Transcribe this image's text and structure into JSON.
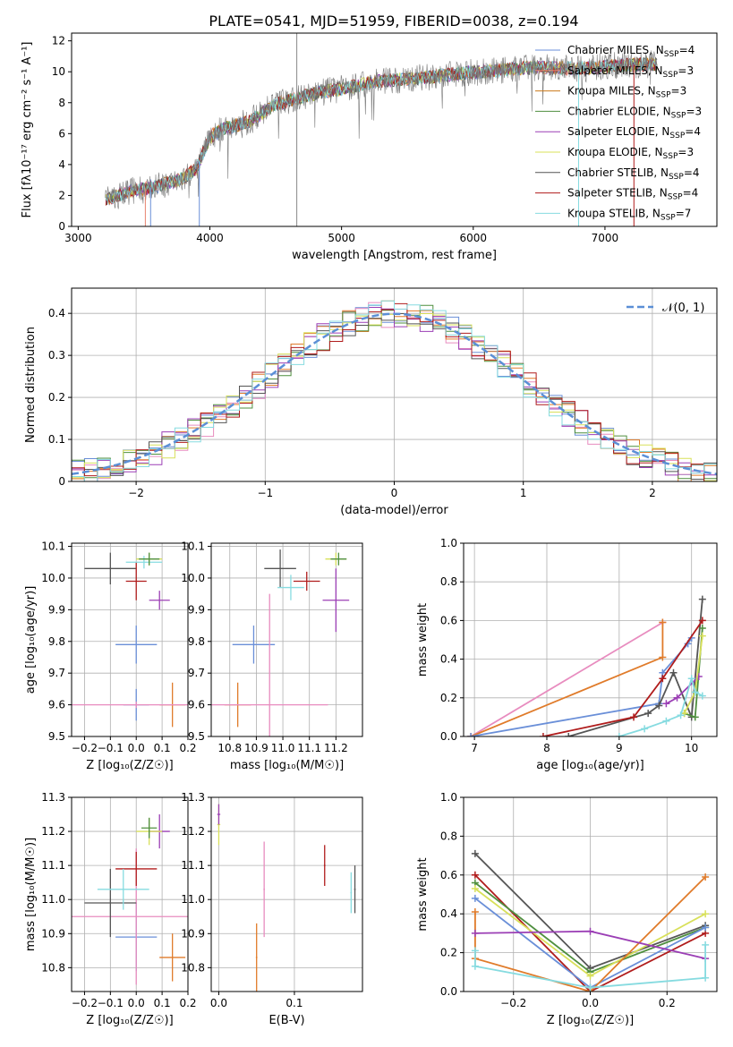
{
  "palette": [
    "#6a8fd8",
    "#e07b2a",
    "#cc7a1a",
    "#4f8f3f",
    "#9b3fb5",
    "#d8e05a",
    "#555555",
    "#b01c1c",
    "#86dbe0",
    "#e88cbf"
  ],
  "chart_data": [
    {
      "id": "spectrum",
      "type": "line",
      "title": "PLATE=0541, MJD=51959, FIBERID=0038, z=0.194",
      "xlabel": "wavelength [Angstrom, rest frame]",
      "ylabel": "Flux [fλ10⁻¹⁷ erg cm⁻² s⁻¹ A⁻¹]",
      "xlim": [
        2950,
        7850
      ],
      "ylim": [
        0,
        12.5
      ],
      "xticks": [
        3000,
        4000,
        5000,
        6000,
        7000
      ],
      "yticks": [
        0,
        2,
        4,
        6,
        8,
        10,
        12
      ],
      "legend_position": "right",
      "legend": [
        {
          "label": "Chabrier MILES, N_SSP=4",
          "color": "#6a8fd8"
        },
        {
          "label": "Salpeter MILES, N_SSP=3",
          "color": "#e8846f"
        },
        {
          "label": "Kroupa MILES, N_SSP=3",
          "color": "#cc7a1a"
        },
        {
          "label": "Chabrier ELODIE, N_SSP=3",
          "color": "#4f8f3f"
        },
        {
          "label": "Salpeter ELODIE, N_SSP=4",
          "color": "#9b3fb5"
        },
        {
          "label": "Kroupa ELODIE, N_SSP=3",
          "color": "#d8e05a"
        },
        {
          "label": "Chabrier STELIB, N_SSP=4",
          "color": "#555555"
        },
        {
          "label": "Salpeter STELIB, N_SSP=4",
          "color": "#b01c1c"
        },
        {
          "label": "Kroupa STELIB, N_SSP=7",
          "color": "#86dbe0"
        }
      ],
      "continuum": {
        "x": [
          3200,
          3400,
          3600,
          3800,
          3900,
          4000,
          4100,
          4300,
          4500,
          4800,
          5000,
          5300,
          5600,
          5900,
          6200,
          6500,
          6800,
          7100,
          7400
        ],
        "y": [
          1.7,
          2.3,
          2.6,
          3.1,
          3.8,
          5.8,
          6.3,
          6.8,
          7.9,
          8.6,
          8.9,
          9.4,
          9.6,
          9.9,
          10.1,
          10.3,
          10.2,
          10.4,
          10.5
        ]
      }
    },
    {
      "id": "residuals",
      "type": "histogram",
      "xlabel": "(data-model)/error",
      "ylabel": "Normed distribution",
      "xlim": [
        -2.5,
        2.5
      ],
      "ylim": [
        0,
        0.46
      ],
      "xticks": [
        -2,
        -1,
        0,
        1,
        2
      ],
      "yticks": [
        0.0,
        0.1,
        0.2,
        0.3,
        0.4
      ],
      "grid": true,
      "legend_position": "top-right",
      "legend": [
        {
          "label": "𝒩(0, 1)",
          "color": "#5b8fd6",
          "dash": true
        }
      ],
      "bin_width": 0.1,
      "n_histograms": 9
    },
    {
      "id": "age-vs-z",
      "type": "errorbar",
      "xlabel": "Z [log₁₀(Z/Z☉)]",
      "ylabel": "age  [log₁₀(age/yr)]",
      "xlim": [
        -0.25,
        0.2
      ],
      "ylim": [
        9.5,
        10.11
      ],
      "xticks": [
        "-0.2",
        "-0.1",
        "0.0",
        "0.1",
        "0.2"
      ],
      "xtick_values": [
        -0.2,
        -0.1,
        0,
        0.1,
        0.2
      ],
      "yticks": [
        "9.5",
        "9.6",
        "9.7",
        "9.8",
        "9.9",
        "10.0",
        "10.1"
      ],
      "ytick_values": [
        9.5,
        9.6,
        9.7,
        9.8,
        9.9,
        10.0,
        10.1
      ],
      "grid": true,
      "points": [
        {
          "x": 0.0,
          "y": 9.79,
          "xerr": 0.08,
          "yerr": 0.06,
          "c": 0
        },
        {
          "x": 0.0,
          "y": 9.6,
          "xerr": 0.05,
          "yerr": 0.05,
          "c": 0
        },
        {
          "x": 0.14,
          "y": 9.6,
          "xerr": 0.05,
          "yerr": 0.07,
          "c": 1
        },
        {
          "x": 0.0,
          "y": 9.6,
          "xerr": 0.25,
          "yerr": 0.01,
          "c": 9
        },
        {
          "x": 0.09,
          "y": 9.93,
          "xerr": 0.04,
          "yerr": 0.03,
          "c": 4
        },
        {
          "x": 0.05,
          "y": 10.06,
          "xerr": 0.05,
          "yerr": 0.02,
          "c": 5
        },
        {
          "x": -0.1,
          "y": 10.03,
          "xerr": 0.1,
          "yerr": 0.05,
          "c": 6
        },
        {
          "x": 0.0,
          "y": 9.99,
          "xerr": 0.04,
          "yerr": 0.06,
          "c": 7
        },
        {
          "x": 0.03,
          "y": 10.05,
          "xerr": 0.07,
          "yerr": 0.02,
          "c": 8
        },
        {
          "x": 0.05,
          "y": 10.06,
          "xerr": 0.04,
          "yerr": 0.02,
          "c": 3
        }
      ]
    },
    {
      "id": "age-vs-mass",
      "type": "errorbar",
      "xlabel": "mass [log₁₀(M/M☉)]",
      "ylabel": "",
      "xlim": [
        10.73,
        11.3
      ],
      "ylim": [
        9.5,
        10.11
      ],
      "xticks": [
        "10.8",
        "10.9",
        "11.0",
        "11.1",
        "11.2"
      ],
      "xtick_values": [
        10.8,
        10.9,
        11.0,
        11.1,
        11.2
      ],
      "yticks": [
        "9.5",
        "9.6",
        "9.7",
        "9.8",
        "9.9",
        "10.0",
        "10.1"
      ],
      "ytick_values": [
        9.5,
        9.6,
        9.7,
        9.8,
        9.9,
        10.0,
        10.1
      ],
      "grid": true,
      "points": [
        {
          "x": 10.89,
          "y": 9.79,
          "xerr": 0.08,
          "yerr": 0.06,
          "c": 0
        },
        {
          "x": 10.83,
          "y": 9.6,
          "xerr": 0.05,
          "yerr": 0.07,
          "c": 1
        },
        {
          "x": 10.95,
          "y": 9.6,
          "xerr": 0.22,
          "yerr": 0.35,
          "c": 9
        },
        {
          "x": 11.2,
          "y": 9.93,
          "xerr": 0.05,
          "yerr": 0.1,
          "c": 4
        },
        {
          "x": 11.2,
          "y": 10.06,
          "xerr": 0.04,
          "yerr": 0.02,
          "c": 5
        },
        {
          "x": 10.99,
          "y": 10.03,
          "xerr": 0.06,
          "yerr": 0.06,
          "c": 6
        },
        {
          "x": 11.09,
          "y": 9.99,
          "xerr": 0.05,
          "yerr": 0.03,
          "c": 7
        },
        {
          "x": 11.03,
          "y": 9.97,
          "xerr": 0.05,
          "yerr": 0.04,
          "c": 8
        },
        {
          "x": 11.21,
          "y": 10.06,
          "xerr": 0.03,
          "yerr": 0.02,
          "c": 3
        }
      ]
    },
    {
      "id": "weight-vs-age",
      "type": "line",
      "xlabel": "age  [log₁₀(age/yr)]",
      "ylabel": "mass weight",
      "xlim": [
        6.85,
        10.35
      ],
      "ylim": [
        0,
        1.0
      ],
      "xticks": [
        "7",
        "8",
        "9",
        "10"
      ],
      "xtick_values": [
        7,
        8,
        9,
        10
      ],
      "yticks": [
        "0.0",
        "0.2",
        "0.4",
        "0.6",
        "0.8",
        "1.0"
      ],
      "ytick_values": [
        0,
        0.2,
        0.4,
        0.6,
        0.8,
        1.0
      ],
      "grid": true,
      "series": [
        {
          "c": 9,
          "x": [
            6.95,
            9.6
          ],
          "y": [
            0.0,
            0.59
          ]
        },
        {
          "c": 1,
          "x": [
            6.95,
            9.6,
            9.6
          ],
          "y": [
            0.0,
            0.41,
            0.59
          ]
        },
        {
          "c": 0,
          "x": [
            6.95,
            9.55,
            9.6,
            9.95,
            10.0
          ],
          "y": [
            0.0,
            0.17,
            0.33,
            0.48,
            0.51
          ]
        },
        {
          "c": 6,
          "x": [
            8.3,
            9.4,
            9.55,
            9.75,
            10.0,
            10.15
          ],
          "y": [
            0.0,
            0.12,
            0.16,
            0.33,
            0.1,
            0.71
          ]
        },
        {
          "c": 7,
          "x": [
            7.95,
            9.2,
            9.6,
            10.15
          ],
          "y": [
            0.0,
            0.1,
            0.3,
            0.6
          ]
        },
        {
          "c": 3,
          "x": [
            9.9,
            10.05,
            10.15
          ],
          "y": [
            0.12,
            0.1,
            0.56
          ]
        },
        {
          "c": 4,
          "x": [
            9.65,
            9.8,
            10.1
          ],
          "y": [
            0.17,
            0.2,
            0.31
          ]
        },
        {
          "c": 5,
          "x": [
            9.9,
            10.05,
            10.15
          ],
          "y": [
            0.12,
            0.23,
            0.52
          ]
        },
        {
          "c": 8,
          "x": [
            9.0,
            9.35,
            9.65,
            9.85,
            10.0,
            10.05,
            10.15
          ],
          "y": [
            0.0,
            0.04,
            0.08,
            0.11,
            0.3,
            0.23,
            0.21
          ]
        }
      ]
    },
    {
      "id": "mass-vs-z",
      "type": "errorbar",
      "xlabel": "Z [log₁₀(Z/Z☉)]",
      "ylabel": "mass [log₁₀(M/M☉)]",
      "xlim": [
        -0.25,
        0.2
      ],
      "ylim": [
        10.73,
        11.3
      ],
      "xticks": [
        "-0.2",
        "-0.1",
        "0.0",
        "0.1",
        "0.2"
      ],
      "xtick_values": [
        -0.2,
        -0.1,
        0,
        0.1,
        0.2
      ],
      "yticks": [
        "10.8",
        "10.9",
        "11.0",
        "11.1",
        "11.2",
        "11.3"
      ],
      "ytick_values": [
        10.8,
        10.9,
        11.0,
        11.1,
        11.2,
        11.3
      ],
      "grid": true,
      "points": [
        {
          "x": 0.0,
          "y": 10.89,
          "xerr": 0.08,
          "yerr": 0.1,
          "c": 0
        },
        {
          "x": 0.14,
          "y": 10.83,
          "xerr": 0.05,
          "yerr": 0.07,
          "c": 1
        },
        {
          "x": 0.0,
          "y": 10.95,
          "xerr": 0.25,
          "yerr": 0.2,
          "c": 9
        },
        {
          "x": 0.09,
          "y": 11.2,
          "xerr": 0.04,
          "yerr": 0.05,
          "c": 4
        },
        {
          "x": 0.05,
          "y": 11.2,
          "xerr": 0.05,
          "yerr": 0.04,
          "c": 5
        },
        {
          "x": -0.1,
          "y": 10.99,
          "xerr": 0.1,
          "yerr": 0.1,
          "c": 6
        },
        {
          "x": 0.0,
          "y": 11.09,
          "xerr": 0.08,
          "yerr": 0.05,
          "c": 7
        },
        {
          "x": -0.05,
          "y": 11.03,
          "xerr": 0.1,
          "yerr": 0.06,
          "c": 8
        },
        {
          "x": 0.05,
          "y": 11.21,
          "xerr": 0.03,
          "yerr": 0.03,
          "c": 3
        }
      ]
    },
    {
      "id": "mass-vs-ebv",
      "type": "errorbar",
      "xlabel": "E(B-V)",
      "ylabel": "",
      "xlim": [
        -0.01,
        0.19
      ],
      "ylim": [
        10.73,
        11.3
      ],
      "xticks": [
        "0.0",
        "0.1"
      ],
      "xtick_values": [
        0,
        0.1
      ],
      "yticks": [
        "10.8",
        "10.9",
        "11.0",
        "11.1",
        "11.2",
        "11.3"
      ],
      "ytick_values": [
        10.8,
        10.9,
        11.0,
        11.1,
        11.2,
        11.3
      ],
      "grid": true,
      "points": [
        {
          "x": 0.0,
          "y": 11.22,
          "xerr": 0.002,
          "yerr": 0.06,
          "c": 5
        },
        {
          "x": 0.0,
          "y": 11.25,
          "xerr": 0.002,
          "yerr": 0.03,
          "c": 4
        },
        {
          "x": 0.05,
          "y": 10.83,
          "xerr": 0.001,
          "yerr": 0.1,
          "c": 1
        },
        {
          "x": 0.06,
          "y": 11.03,
          "xerr": 0.001,
          "yerr": 0.14,
          "c": 9
        },
        {
          "x": 0.14,
          "y": 11.1,
          "xerr": 0.001,
          "yerr": 0.06,
          "c": 7
        },
        {
          "x": 0.175,
          "y": 11.02,
          "xerr": 0.001,
          "yerr": 0.06,
          "c": 8
        },
        {
          "x": 0.18,
          "y": 11.03,
          "xerr": 0.001,
          "yerr": 0.07,
          "c": 6
        }
      ]
    },
    {
      "id": "weight-vs-z",
      "type": "line",
      "xlabel": "Z [log₁₀(Z/Z☉)]",
      "ylabel": "mass weight",
      "xlim": [
        -0.33,
        0.33
      ],
      "ylim": [
        0,
        1.0
      ],
      "xticks": [
        "−0.2",
        "0.0",
        "0.2"
      ],
      "xtick_values": [
        -0.2,
        0,
        0.2
      ],
      "yticks": [
        "0.0",
        "0.2",
        "0.4",
        "0.6",
        "0.8",
        "1.0"
      ],
      "ytick_values": [
        0,
        0.2,
        0.4,
        0.6,
        0.8,
        1.0
      ],
      "grid": true,
      "series": [
        {
          "c": 6,
          "x": [
            -0.3,
            0.0,
            0.3
          ],
          "y": [
            0.71,
            0.12,
            0.34
          ]
        },
        {
          "c": 7,
          "x": [
            -0.3,
            0.0,
            0.3
          ],
          "y": [
            0.6,
            0.0,
            0.3
          ]
        },
        {
          "c": 3,
          "x": [
            -0.3,
            0.0,
            0.3
          ],
          "y": [
            0.56,
            0.1,
            0.33
          ]
        },
        {
          "c": 5,
          "x": [
            -0.3,
            0.0,
            0.3
          ],
          "y": [
            0.53,
            0.08,
            0.4
          ]
        },
        {
          "c": 0,
          "x": [
            -0.3,
            0.0,
            0.3
          ],
          "y": [
            0.48,
            0.02,
            0.33
          ]
        },
        {
          "c": 1,
          "x": [
            -0.3,
            -0.3,
            0.0,
            0.3
          ],
          "y": [
            0.41,
            0.17,
            0.0,
            0.59
          ]
        },
        {
          "c": 4,
          "x": [
            -0.3,
            0.0,
            0.3
          ],
          "y": [
            0.3,
            0.31,
            0.17
          ]
        },
        {
          "c": 8,
          "x": [
            -0.3,
            -0.3,
            0.0,
            0.3,
            0.3
          ],
          "y": [
            0.21,
            0.13,
            0.02,
            0.07,
            0.24
          ]
        }
      ]
    }
  ]
}
